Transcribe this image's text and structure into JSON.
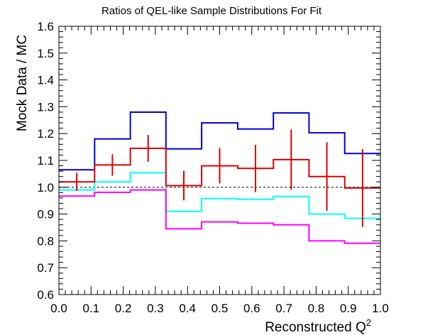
{
  "chart_data": {
    "type": "line",
    "title": "Ratios of QEL-like Sample Distributions For Fit",
    "xlabel": "Reconstructed Q",
    "xlabel_sup": "2",
    "ylabel": "Mock Data / MC",
    "xlim": [
      0.0,
      1.0
    ],
    "ylim": [
      0.6,
      1.6
    ],
    "x_ticks": [
      "0.0",
      "0.1",
      "0.2",
      "0.3",
      "0.4",
      "0.5",
      "0.6",
      "0.7",
      "0.8",
      "0.9",
      "1.0"
    ],
    "y_ticks": [
      "0.6",
      "0.7",
      "0.8",
      "0.9",
      "1.0",
      "1.1",
      "1.2",
      "1.3",
      "1.4",
      "1.5",
      "1.6"
    ],
    "bin_edges": [
      0.0,
      0.111,
      0.222,
      0.333,
      0.444,
      0.556,
      0.667,
      0.778,
      0.889,
      1.0
    ],
    "reference_line": {
      "y": 1.0,
      "style": "dotted",
      "color": "#555555"
    },
    "series": [
      {
        "kind": "step",
        "color": "#0000dd",
        "values": [
          1.065,
          1.18,
          1.28,
          1.143,
          1.24,
          1.217,
          1.277,
          1.203,
          1.126
        ]
      },
      {
        "kind": "step",
        "color": "#00ffff",
        "values": [
          0.99,
          1.02,
          1.054,
          0.91,
          0.958,
          0.955,
          0.966,
          0.9,
          0.884
        ]
      },
      {
        "kind": "step",
        "color": "#ff00ff",
        "values": [
          0.967,
          0.981,
          0.99,
          0.845,
          0.871,
          0.866,
          0.86,
          0.8,
          0.791
        ]
      },
      {
        "kind": "step_errorbar",
        "color": "#dd0000",
        "values": [
          1.02,
          1.083,
          1.145,
          1.006,
          1.08,
          1.07,
          1.103,
          1.04,
          0.997
        ],
        "errors": [
          0.034,
          0.04,
          0.05,
          0.055,
          0.066,
          0.088,
          0.112,
          0.128,
          0.145
        ]
      }
    ]
  }
}
